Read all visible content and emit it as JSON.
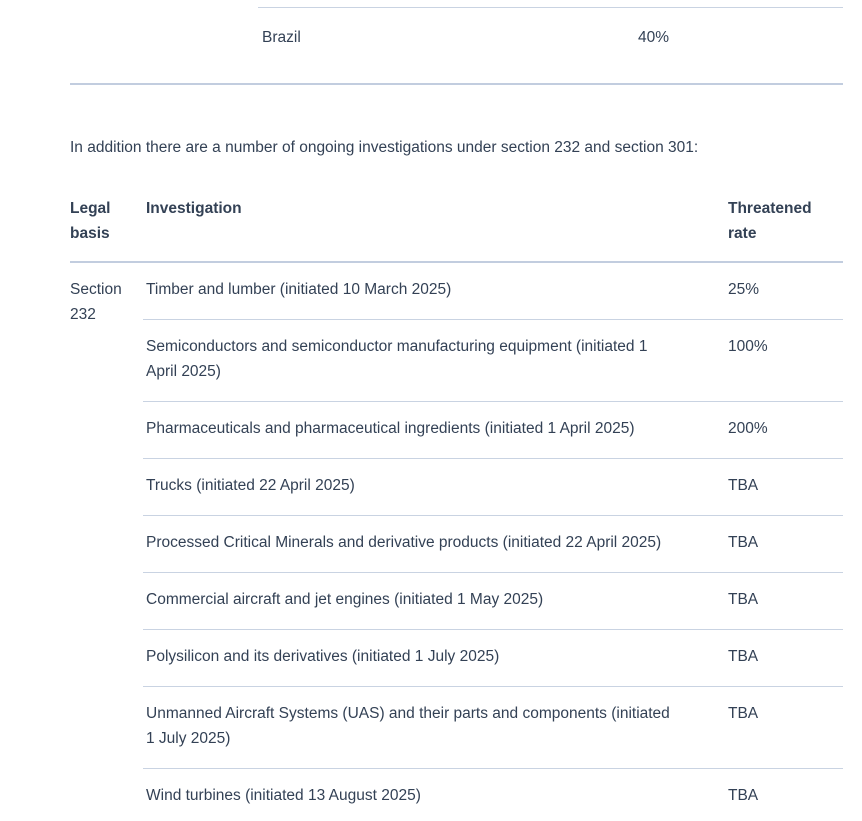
{
  "colors": {
    "text": "#334155",
    "border_light": "#c9d3e2",
    "border_strong": "#c2cddf",
    "background": "#ffffff"
  },
  "top_table": {
    "visible_row": {
      "country": "Brazil",
      "rate": "40%"
    }
  },
  "intro": {
    "text": "In addition there are a number of ongoing investigations under section 232 and section 301:"
  },
  "investigations_table": {
    "headers": {
      "legal_basis": "Legal basis",
      "investigation": "Investigation",
      "threatened_rate": "Threatened rate"
    },
    "legal_basis": "Section 232",
    "rows": [
      {
        "investigation": "Timber and lumber (initiated 10 March 2025)",
        "rate": "25%"
      },
      {
        "investigation": "Semiconductors and semiconductor manufacturing equipment (initiated 1 April 2025)",
        "rate": "100%"
      },
      {
        "investigation": "Pharmaceuticals and pharmaceutical ingredients (initiated 1 April 2025)",
        "rate": "200%"
      },
      {
        "investigation": "Trucks (initiated 22 April 2025)",
        "rate": "TBA"
      },
      {
        "investigation": "Processed Critical Minerals and derivative products (initiated 22 April 2025)",
        "rate": "TBA"
      },
      {
        "investigation": "Commercial aircraft and jet engines (initiated 1 May 2025)",
        "rate": "TBA"
      },
      {
        "investigation": "Polysilicon and its derivatives (initiated 1 July 2025)",
        "rate": "TBA"
      },
      {
        "investigation": "Unmanned Aircraft Systems (UAS) and their parts and components (initiated 1 July 2025)",
        "rate": "TBA"
      },
      {
        "investigation": "Wind turbines (initiated 13 August 2025)",
        "rate": "TBA"
      }
    ]
  }
}
